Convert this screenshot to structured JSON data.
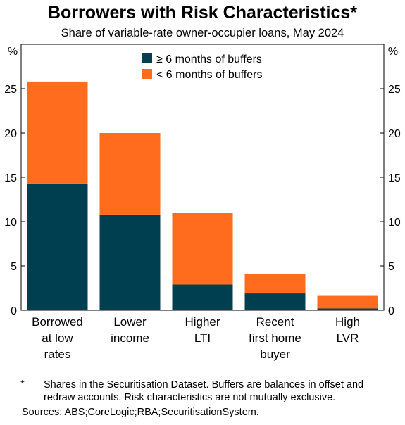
{
  "chart_data": {
    "type": "bar",
    "stacked": true,
    "title": "Borrowers with Risk Characteristics*",
    "subtitle": "Share of variable-rate owner-occupier loans, May 2024",
    "y_unit_left": "%",
    "y_unit_right": "%",
    "ylim": [
      0,
      30
    ],
    "yticks": [
      "0",
      "5",
      "10",
      "15",
      "20",
      "25"
    ],
    "yticks_values": [
      0,
      5,
      10,
      15,
      20,
      25
    ],
    "grid": false,
    "legend_placement": "top-center",
    "categories": [
      [
        "Borrowed",
        "at low",
        "rates"
      ],
      [
        "Lower",
        "income"
      ],
      [
        "Higher",
        "LTI"
      ],
      [
        "Recent",
        "first home",
        "buyer"
      ],
      [
        "High",
        "LVR"
      ]
    ],
    "series": [
      {
        "name": "≥ 6 months of buffers",
        "color": "#003f4f",
        "values": [
          14.3,
          10.8,
          2.9,
          1.9,
          0.2
        ]
      },
      {
        "name": "< 6 months of buffers",
        "color": "#ff6c1d",
        "values": [
          11.5,
          9.2,
          8.1,
          2.2,
          1.5
        ]
      }
    ]
  },
  "footnote": {
    "mark": "*",
    "text": "Shares in the Securitisation Dataset. Buffers are balances in offset and redraw accounts. Risk characteristics are not mutually exclusive."
  },
  "sources": "Sources: ABS;CoreLogic;RBA;SecuritisationSystem."
}
